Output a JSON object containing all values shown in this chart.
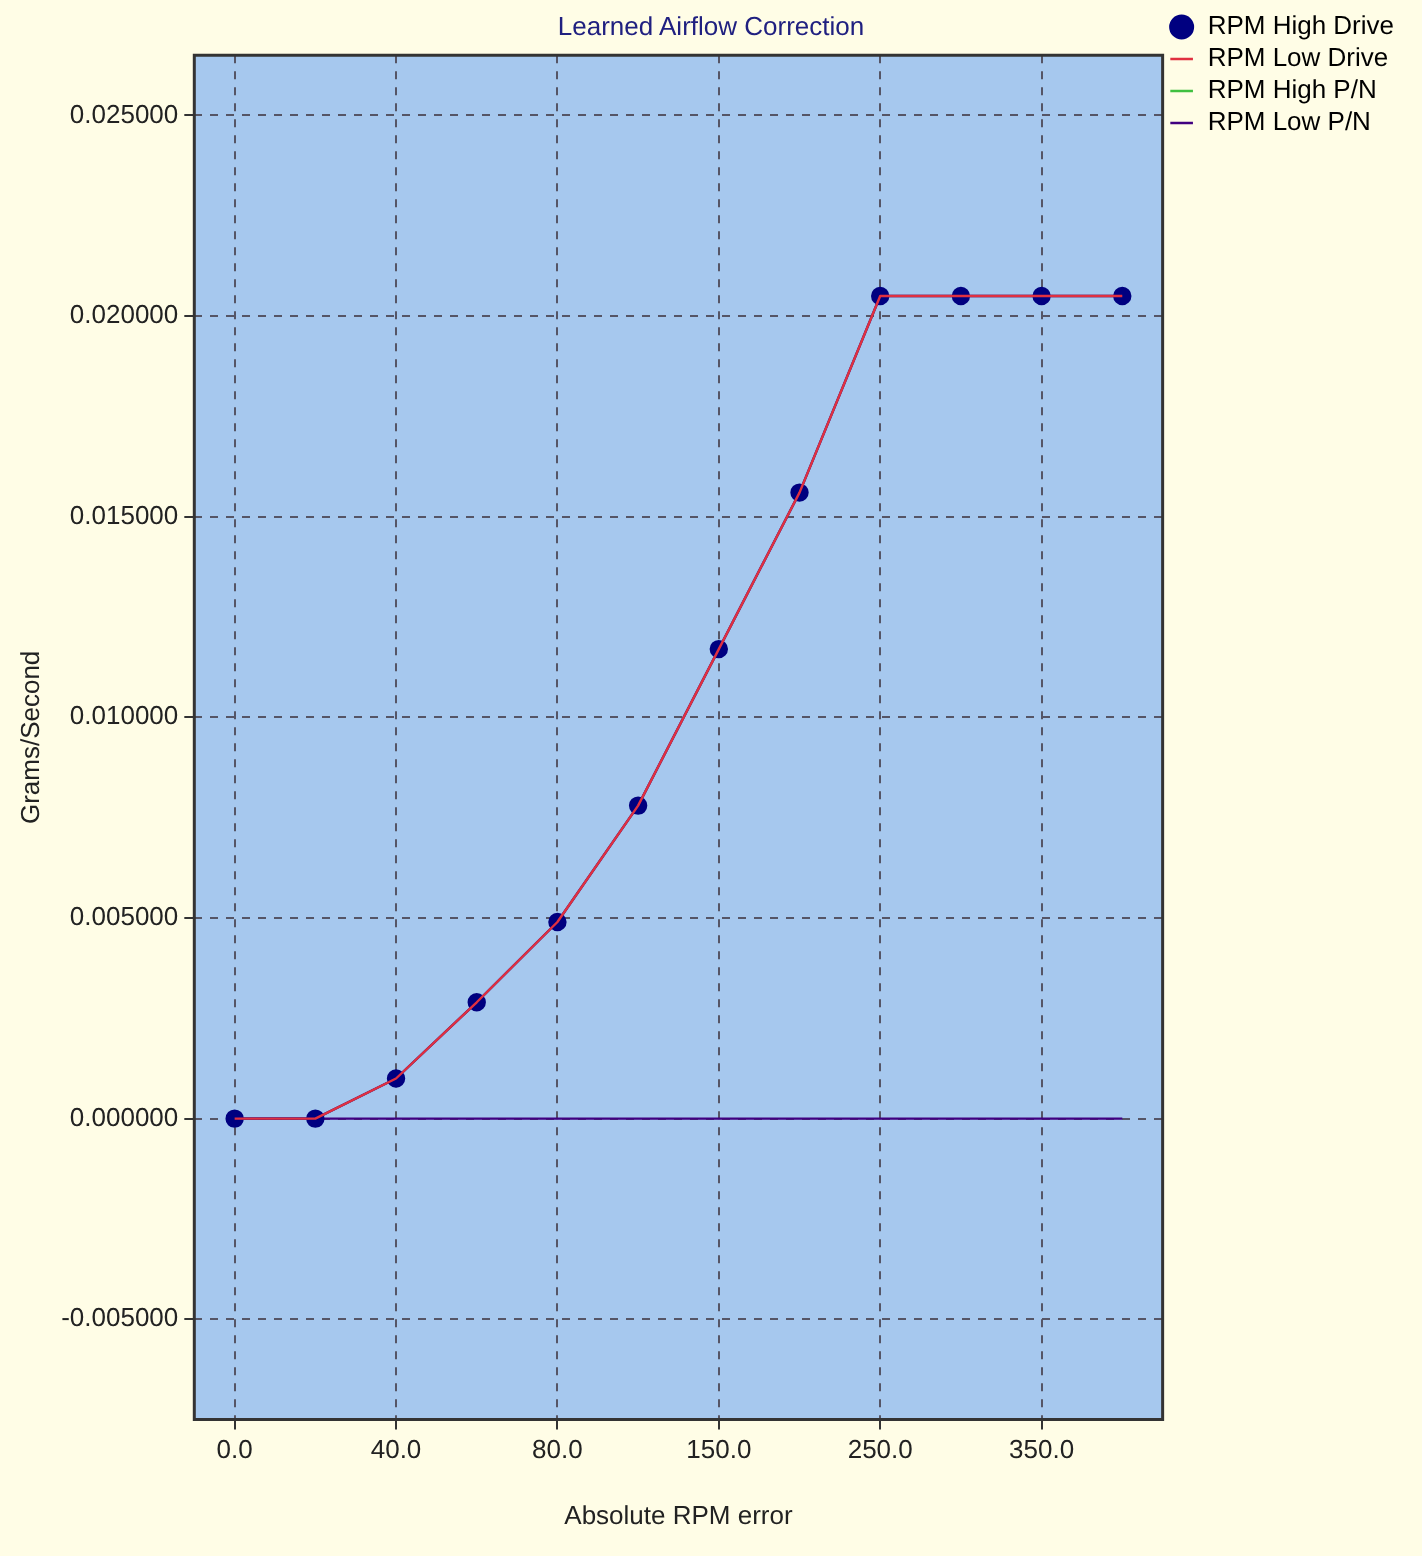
{
  "chart_data": {
    "type": "line",
    "title": "Learned Airflow Correction",
    "xlabel": "Absolute RPM error",
    "ylabel": "Grams/Second",
    "categories": [
      "0.0",
      null,
      "40.0",
      null,
      "80.0",
      null,
      "150.0",
      null,
      "250.0",
      null,
      "350.0",
      null
    ],
    "series": [
      {
        "name": "RPM High Drive",
        "color": "#000080",
        "marker": "circle",
        "values": [
          0,
          0,
          0.001,
          0.0029,
          0.0049,
          0.0078,
          0.0117,
          0.0156,
          0.0205,
          0.0205,
          0.0205,
          0.0205
        ]
      },
      {
        "name": "RPM Low Drive",
        "color": "#e03040",
        "marker": "none",
        "values": [
          0,
          0,
          0.001,
          0.0029,
          0.0049,
          0.0078,
          0.0117,
          0.0156,
          0.0205,
          0.0205,
          0.0205,
          0.0205
        ]
      },
      {
        "name": "RPM High P/N",
        "color": "#40c040",
        "marker": "none",
        "values": [
          null,
          null,
          null,
          null,
          null,
          null,
          null,
          null,
          null,
          null,
          null,
          null
        ]
      },
      {
        "name": "RPM Low P/N",
        "color": "#400080",
        "marker": "none",
        "values": [
          0,
          0,
          0,
          0,
          0,
          0,
          0,
          0,
          0,
          0,
          0,
          0
        ]
      }
    ],
    "ylim": [
      -0.0075,
      0.0265
    ],
    "yticks": [
      {
        "value": -0.005,
        "label": "-0.005000"
      },
      {
        "value": 0,
        "label": "0.000000"
      },
      {
        "value": 0.005,
        "label": "0.005000"
      },
      {
        "value": 0.01,
        "label": "0.010000"
      },
      {
        "value": 0.015,
        "label": "0.015000"
      },
      {
        "value": 0.02,
        "label": "0.020000"
      },
      {
        "value": 0.025,
        "label": "0.025000"
      }
    ],
    "grid": true,
    "legend": "top right",
    "line_style": "solid"
  }
}
